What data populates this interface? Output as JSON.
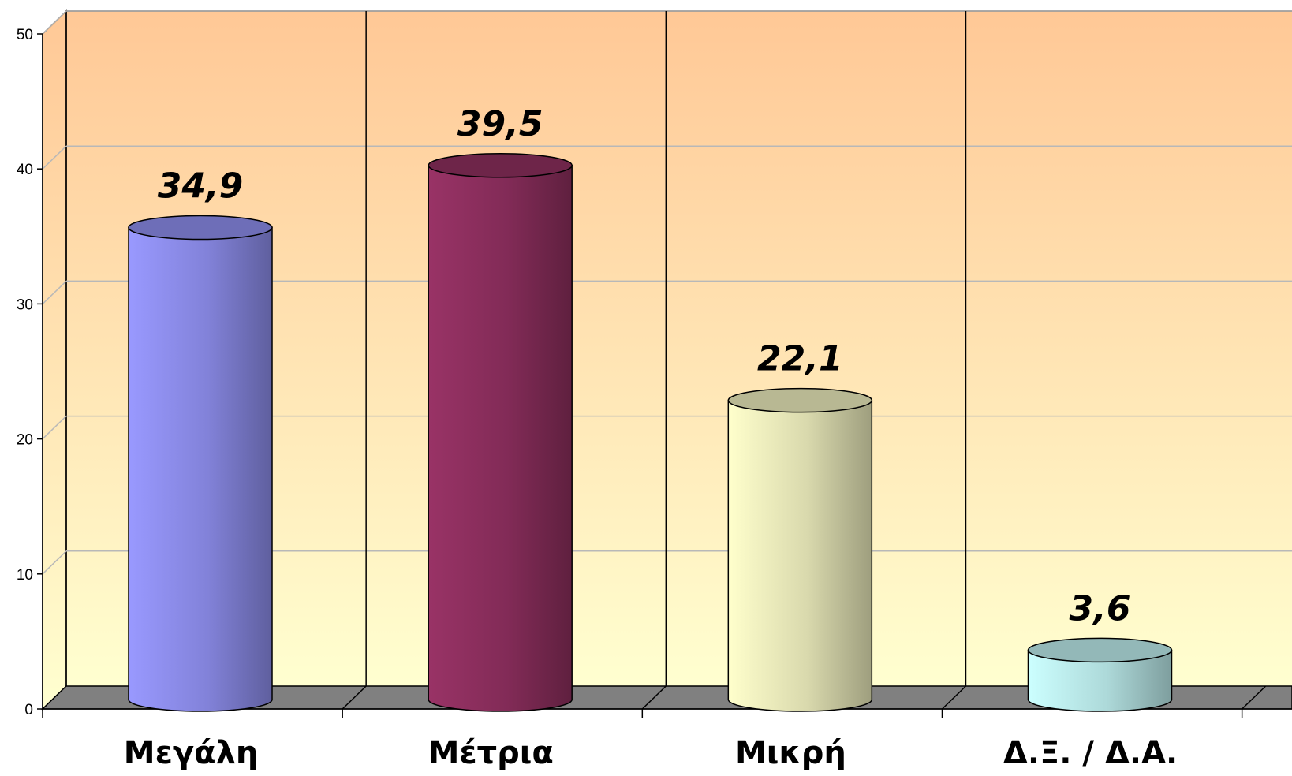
{
  "chart_data": {
    "type": "bar",
    "style": "3d-cylinder",
    "categories": [
      "Μεγάλη",
      "Μέτρια",
      "Μικρή",
      "Δ.Ξ. / Δ.Α."
    ],
    "values": [
      34.9,
      39.5,
      22.1,
      3.6
    ],
    "data_labels": [
      "34,9",
      "39,5",
      "22,1",
      "3,6"
    ],
    "ylim": [
      0,
      50
    ],
    "yticks": [
      0,
      10,
      20,
      30,
      40,
      50
    ],
    "ytick_labels": [
      "0",
      "10",
      "20",
      "30",
      "40",
      "50"
    ],
    "grid": true,
    "legend": "none",
    "colors": {
      "bars": [
        "#9999ff",
        "#993366",
        "#ffffcc",
        "#ccffff"
      ],
      "wall_top": "#ffc896",
      "wall_bottom": "#ffffd0",
      "floor": "#808080"
    }
  }
}
